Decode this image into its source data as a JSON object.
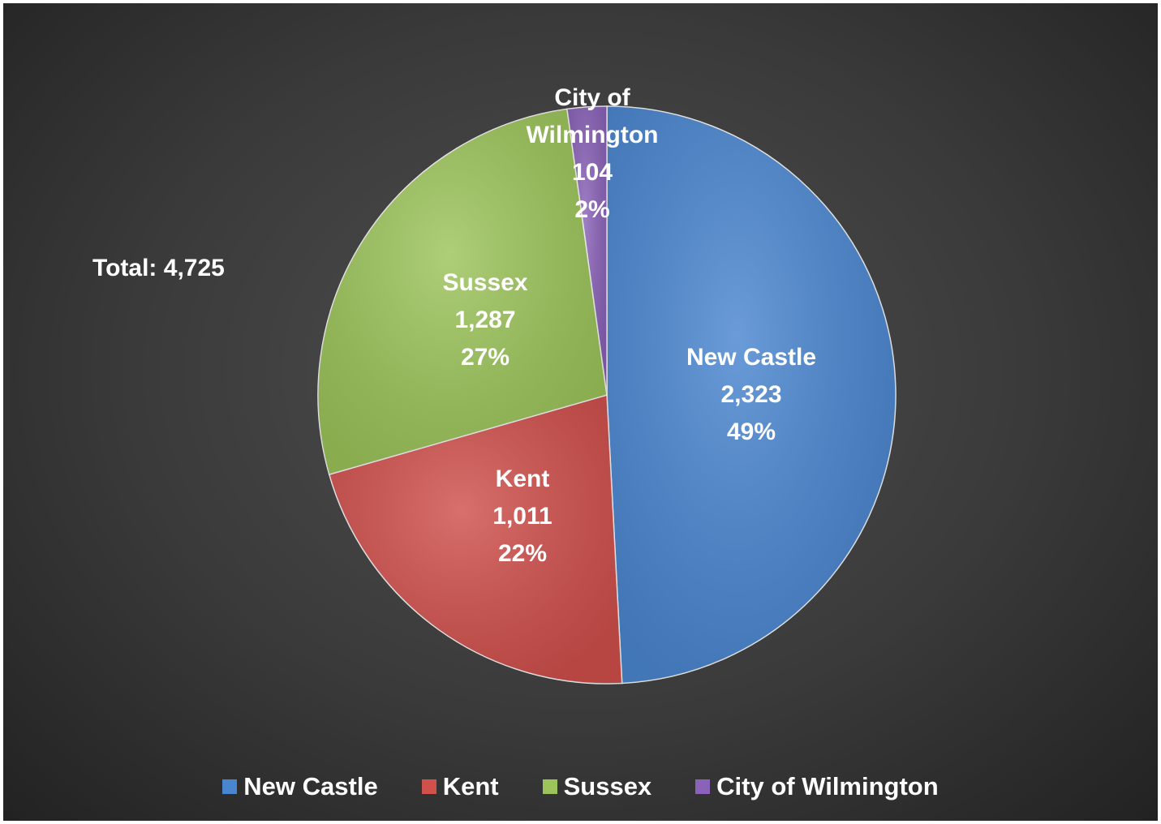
{
  "chart_data": {
    "type": "pie",
    "annotation": "Total: 4,725",
    "categories": [
      "New Castle",
      "Kent",
      "Sussex",
      "City of Wilmington"
    ],
    "values": [
      2323,
      1011,
      1287,
      104
    ],
    "value_labels": [
      "2,323",
      "1,011",
      "1,287",
      "104"
    ],
    "percent_labels": [
      "49%",
      "22%",
      "27%",
      "2%"
    ],
    "colors": [
      "#4a86d0",
      "#d0504c",
      "#9cc45a",
      "#8a62b8"
    ],
    "legend": "bottom"
  }
}
